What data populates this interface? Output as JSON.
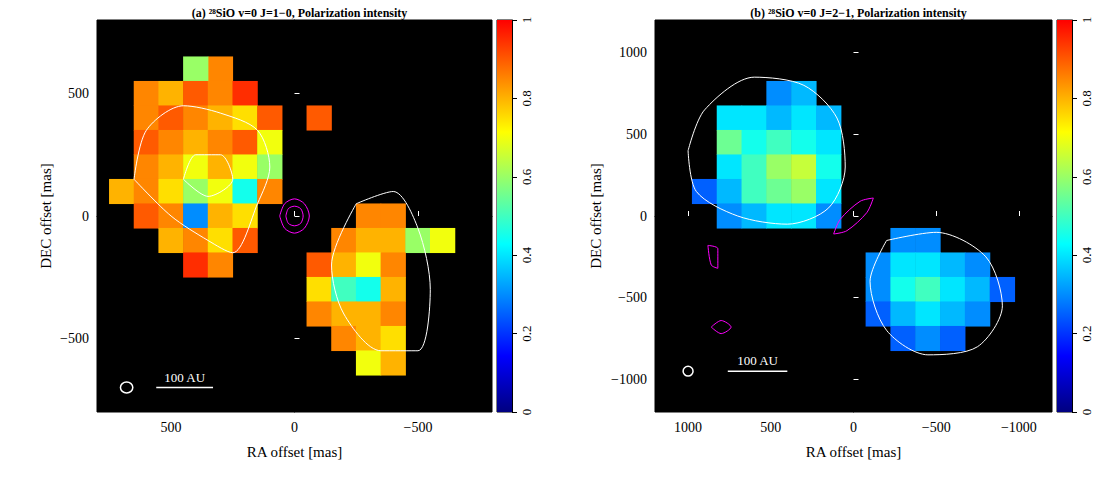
{
  "chart_data": [
    {
      "type": "heatmap",
      "title": "(a) ²⁸SiO v=0 J=1−0, Polarization intensity",
      "xlabel": "RA offset [mas]",
      "ylabel": "DEC offset [mas]",
      "xlim": [
        800,
        -800
      ],
      "xticks": [
        500,
        0,
        {
          "value": -500,
          "label": "−500"
        }
      ],
      "ylim": [
        -800,
        800
      ],
      "yticks": [
        {
          "value": -500,
          "label": "−500"
        },
        0,
        500
      ],
      "colorbar": {
        "range": [
          0,
          1
        ],
        "ticks": [
          0,
          0.2,
          0.4,
          0.6,
          0.8,
          1
        ]
      },
      "cells": [
        [
          300,
          600,
          0.85
        ],
        [
          400,
          600,
          0.6
        ],
        [
          600,
          500,
          0.85
        ],
        [
          500,
          500,
          0.8
        ],
        [
          400,
          500,
          0.9
        ],
        [
          300,
          500,
          0.85
        ],
        [
          200,
          500,
          0.95
        ],
        [
          600,
          400,
          0.85
        ],
        [
          500,
          400,
          0.9
        ],
        [
          400,
          400,
          0.85
        ],
        [
          300,
          400,
          0.8
        ],
        [
          200,
          400,
          0.75
        ],
        [
          100,
          400,
          0.9
        ],
        [
          -100,
          400,
          0.9
        ],
        [
          600,
          300,
          0.9
        ],
        [
          500,
          300,
          0.85
        ],
        [
          400,
          300,
          0.8
        ],
        [
          300,
          300,
          0.85
        ],
        [
          200,
          300,
          0.9
        ],
        [
          100,
          300,
          0.7
        ],
        [
          600,
          200,
          0.85
        ],
        [
          500,
          200,
          0.8
        ],
        [
          400,
          200,
          0.7
        ],
        [
          300,
          200,
          0.8
        ],
        [
          200,
          200,
          0.7
        ],
        [
          100,
          200,
          0.6
        ],
        [
          700,
          100,
          0.8
        ],
        [
          600,
          100,
          0.85
        ],
        [
          500,
          100,
          0.75
        ],
        [
          400,
          100,
          0.6
        ],
        [
          300,
          100,
          0.7
        ],
        [
          200,
          100,
          0.45
        ],
        [
          100,
          100,
          0.85
        ],
        [
          600,
          0,
          0.9
        ],
        [
          500,
          0,
          0.85
        ],
        [
          400,
          0,
          0.3
        ],
        [
          300,
          0,
          0.8
        ],
        [
          200,
          0,
          0.75
        ],
        [
          500,
          -100,
          0.8
        ],
        [
          400,
          -100,
          0.85
        ],
        [
          300,
          -100,
          0.75
        ],
        [
          200,
          -100,
          0.9
        ],
        [
          400,
          -200,
          0.95
        ],
        [
          300,
          -200,
          0.85
        ],
        [
          -300,
          0,
          0.85
        ],
        [
          -400,
          0,
          0.85
        ],
        [
          -200,
          -100,
          0.85
        ],
        [
          -300,
          -100,
          0.8
        ],
        [
          -400,
          -100,
          0.8
        ],
        [
          -500,
          -100,
          0.6
        ],
        [
          -600,
          -100,
          0.7
        ],
        [
          -100,
          -200,
          0.9
        ],
        [
          -200,
          -200,
          0.8
        ],
        [
          -300,
          -200,
          0.7
        ],
        [
          -400,
          -200,
          0.85
        ],
        [
          -100,
          -300,
          0.75
        ],
        [
          -200,
          -300,
          0.5
        ],
        [
          -300,
          -300,
          0.45
        ],
        [
          -400,
          -300,
          0.8
        ],
        [
          -100,
          -400,
          0.85
        ],
        [
          -200,
          -400,
          0.8
        ],
        [
          -300,
          -400,
          0.8
        ],
        [
          -400,
          -400,
          0.85
        ],
        [
          -200,
          -500,
          0.85
        ],
        [
          -300,
          -500,
          0.8
        ],
        [
          -400,
          -500,
          0.75
        ],
        [
          -300,
          -600,
          0.7
        ],
        [
          -400,
          -600,
          0.8
        ]
      ],
      "contours": [
        {
          "color": "#ffffff",
          "points": [
            [
              650,
              150
            ],
            [
              600,
              350
            ],
            [
              450,
              450
            ],
            [
              300,
              420
            ],
            [
              150,
              350
            ],
            [
              100,
              200
            ],
            [
              150,
              50
            ],
            [
              250,
              -150
            ],
            [
              350,
              -100
            ],
            [
              500,
              0
            ],
            [
              650,
              150
            ]
          ]
        },
        {
          "color": "#ffffff",
          "points": [
            [
              450,
              150
            ],
            [
              400,
              250
            ],
            [
              300,
              250
            ],
            [
              250,
              150
            ],
            [
              350,
              80
            ],
            [
              450,
              150
            ]
          ]
        },
        {
          "color": "#ffffff",
          "points": [
            [
              -250,
              50
            ],
            [
              -400,
              100
            ],
            [
              -500,
              -50
            ],
            [
              -550,
              -300
            ],
            [
              -500,
              -550
            ],
            [
              -350,
              -550
            ],
            [
              -200,
              -400
            ],
            [
              -150,
              -200
            ],
            [
              -250,
              50
            ]
          ]
        },
        {
          "color": "#ff00ff",
          "points": [
            [
              60,
              0
            ],
            [
              40,
              50
            ],
            [
              0,
              70
            ],
            [
              -40,
              50
            ],
            [
              -60,
              0
            ],
            [
              -40,
              -50
            ],
            [
              0,
              -70
            ],
            [
              40,
              -50
            ],
            [
              60,
              0
            ]
          ]
        },
        {
          "color": "#ff00ff",
          "points": [
            [
              35,
              0
            ],
            [
              25,
              30
            ],
            [
              0,
              40
            ],
            [
              -25,
              30
            ],
            [
              -35,
              0
            ],
            [
              -25,
              -30
            ],
            [
              0,
              -40
            ],
            [
              25,
              -30
            ],
            [
              35,
              0
            ]
          ]
        }
      ],
      "scale_bar": {
        "label": "100 AU",
        "from": [
          560,
          -700
        ],
        "to": [
          330,
          -700
        ]
      },
      "beam": {
        "center": [
          680,
          -700
        ],
        "width": 50,
        "height": 45
      }
    },
    {
      "type": "heatmap",
      "title": "(b) ²⁸SiO v=0 J=2−1, Polarization intensity",
      "xlabel": "RA offset [mas]",
      "ylabel": "DEC offset [mas]",
      "xlim": [
        1200,
        -1200
      ],
      "xticks": [
        1000,
        500,
        0,
        {
          "value": -500,
          "label": "−500"
        },
        {
          "value": -1000,
          "label": "−1000"
        }
      ],
      "ylim": [
        -1200,
        1200
      ],
      "yticks": [
        {
          "value": -1000,
          "label": "−1000"
        },
        {
          "value": -500,
          "label": "−500"
        },
        0,
        500,
        1000
      ],
      "colorbar": {
        "range": [
          0,
          1
        ],
        "ticks": [
          0,
          0.2,
          0.4,
          0.6,
          0.8,
          1
        ]
      },
      "cells": [
        [
          450,
          750,
          0.3
        ],
        [
          300,
          750,
          0.35
        ],
        [
          750,
          600,
          0.4
        ],
        [
          600,
          600,
          0.4
        ],
        [
          450,
          600,
          0.35
        ],
        [
          300,
          600,
          0.4
        ],
        [
          150,
          600,
          0.35
        ],
        [
          750,
          450,
          0.55
        ],
        [
          600,
          450,
          0.45
        ],
        [
          450,
          450,
          0.5
        ],
        [
          300,
          450,
          0.45
        ],
        [
          150,
          450,
          0.4
        ],
        [
          750,
          300,
          0.4
        ],
        [
          600,
          300,
          0.5
        ],
        [
          450,
          300,
          0.6
        ],
        [
          300,
          300,
          0.65
        ],
        [
          150,
          300,
          0.45
        ],
        [
          900,
          150,
          0.25
        ],
        [
          750,
          150,
          0.35
        ],
        [
          600,
          150,
          0.5
        ],
        [
          450,
          150,
          0.55
        ],
        [
          300,
          150,
          0.6
        ],
        [
          150,
          150,
          0.4
        ],
        [
          750,
          0,
          0.3
        ],
        [
          600,
          0,
          0.35
        ],
        [
          450,
          0,
          0.4
        ],
        [
          300,
          0,
          0.4
        ],
        [
          150,
          0,
          0.3
        ],
        [
          -300,
          -150,
          0.3
        ],
        [
          -450,
          -150,
          0.3
        ],
        [
          -150,
          -300,
          0.3
        ],
        [
          -300,
          -300,
          0.4
        ],
        [
          -450,
          -300,
          0.4
        ],
        [
          -600,
          -300,
          0.35
        ],
        [
          -750,
          -300,
          0.3
        ],
        [
          -150,
          -450,
          0.3
        ],
        [
          -300,
          -450,
          0.45
        ],
        [
          -450,
          -450,
          0.5
        ],
        [
          -600,
          -450,
          0.4
        ],
        [
          -750,
          -450,
          0.35
        ],
        [
          -900,
          -450,
          0.25
        ],
        [
          -150,
          -600,
          0.25
        ],
        [
          -300,
          -600,
          0.35
        ],
        [
          -450,
          -600,
          0.4
        ],
        [
          -600,
          -600,
          0.35
        ],
        [
          -750,
          -600,
          0.3
        ],
        [
          -300,
          -750,
          0.25
        ],
        [
          -450,
          -750,
          0.3
        ],
        [
          -600,
          -750,
          0.25
        ]
      ],
      "contours": [
        {
          "color": "#ffffff",
          "points": [
            [
              1000,
              400
            ],
            [
              900,
              650
            ],
            [
              600,
              850
            ],
            [
              300,
              800
            ],
            [
              100,
              600
            ],
            [
              50,
              300
            ],
            [
              150,
              50
            ],
            [
              400,
              -50
            ],
            [
              700,
              0
            ],
            [
              950,
              150
            ],
            [
              1000,
              400
            ]
          ]
        },
        {
          "color": "#ffffff",
          "points": [
            [
              -200,
              -150
            ],
            [
              -500,
              -100
            ],
            [
              -800,
              -250
            ],
            [
              -900,
              -550
            ],
            [
              -750,
              -800
            ],
            [
              -450,
              -850
            ],
            [
              -200,
              -700
            ],
            [
              -100,
              -400
            ],
            [
              -200,
              -150
            ]
          ]
        },
        {
          "color": "#ff00ff",
          "points": [
            [
              120,
              -110
            ],
            [
              40,
              -90
            ],
            [
              -80,
              20
            ],
            [
              -120,
              110
            ],
            [
              -40,
              90
            ],
            [
              80,
              -20
            ],
            [
              120,
              -110
            ]
          ]
        },
        {
          "color": "#ff00ff",
          "points": [
            [
              860,
              -680
            ],
            [
              800,
              -640
            ],
            [
              740,
              -680
            ],
            [
              800,
              -720
            ],
            [
              860,
              -680
            ]
          ]
        },
        {
          "color": "#ff00ff",
          "points": [
            [
              880,
              -180
            ],
            [
              820,
              -200
            ],
            [
              820,
              -320
            ],
            [
              860,
              -300
            ],
            [
              880,
              -180
            ]
          ]
        }
      ],
      "scale_bar": {
        "label": "100 AU",
        "from": [
          760,
          -950
        ],
        "to": [
          400,
          -950
        ]
      },
      "beam": {
        "center": [
          1000,
          -950
        ],
        "width": 60,
        "height": 60
      }
    }
  ]
}
